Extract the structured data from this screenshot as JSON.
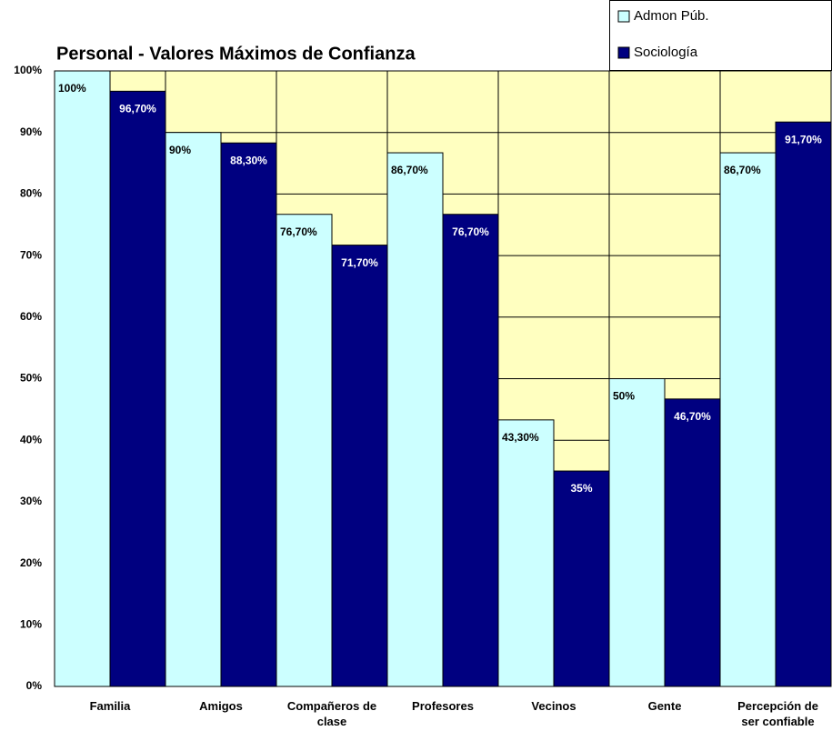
{
  "chart_data": {
    "type": "bar",
    "title": "Personal - Valores Máximos de Confianza",
    "categories": [
      "Familia",
      "Amigos",
      "Compañeros de clase",
      "Profesores",
      "Vecinos",
      "Gente",
      "Percepción de ser confiable"
    ],
    "series": [
      {
        "name": "Admon Púb.",
        "color": "#ccffff",
        "label_color": "#000000",
        "values": [
          100,
          90,
          76.7,
          86.7,
          43.3,
          50,
          86.7
        ],
        "value_labels": [
          "100%",
          "90%",
          "76,70%",
          "86,70%",
          "43,30%",
          "50%",
          "86,70%"
        ]
      },
      {
        "name": "Sociología",
        "color": "#000080",
        "label_color": "#ffffff",
        "values": [
          96.7,
          88.3,
          71.7,
          76.7,
          35,
          46.7,
          91.7
        ],
        "value_labels": [
          "96,70%",
          "88,30%",
          "71,70%",
          "76,70%",
          "35%",
          "46,70%",
          "91,70%"
        ]
      }
    ],
    "ylim": [
      0,
      100
    ],
    "yticks": [
      {
        "value": 0,
        "label": "0%"
      },
      {
        "value": 10,
        "label": "10%"
      },
      {
        "value": 20,
        "label": "20%"
      },
      {
        "value": 30,
        "label": "30%"
      },
      {
        "value": 40,
        "label": "40%"
      },
      {
        "value": 50,
        "label": "50%"
      },
      {
        "value": 60,
        "label": "60%"
      },
      {
        "value": 70,
        "label": "70%"
      },
      {
        "value": 80,
        "label": "80%"
      },
      {
        "value": 90,
        "label": "90%"
      },
      {
        "value": 100,
        "label": "100%"
      }
    ],
    "grid": true,
    "plot_background": "#ffffc0",
    "legend": "top-right"
  }
}
